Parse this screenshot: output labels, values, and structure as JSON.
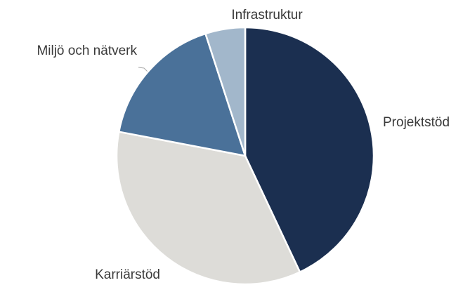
{
  "chart_data": {
    "type": "pie",
    "categories": [
      "Projektstöd",
      "Karriärstöd",
      "Miljö och nätverk",
      "Infrastruktur"
    ],
    "values": [
      43,
      35,
      17,
      5
    ],
    "colors": [
      "#1b2f50",
      "#dddcd8",
      "#4a7199",
      "#a2b7cb"
    ]
  }
}
